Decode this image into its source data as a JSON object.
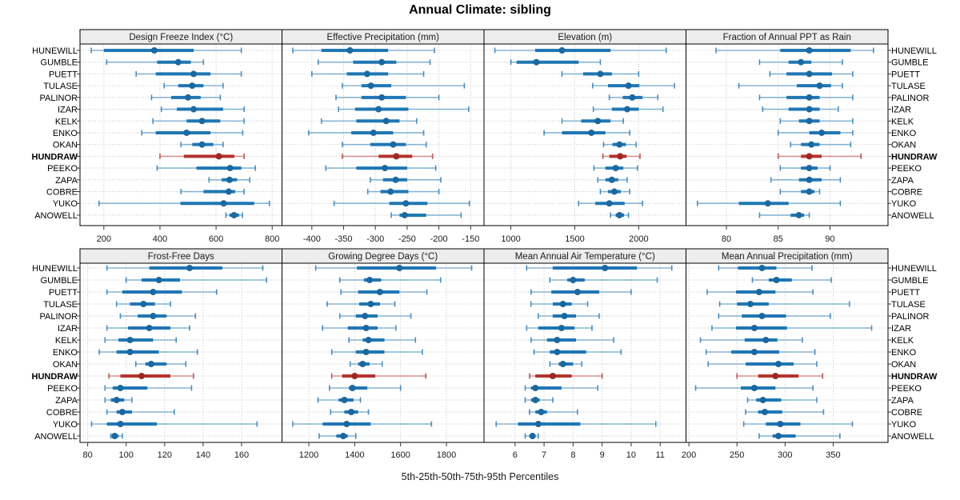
{
  "title": "Annual Climate: sibling",
  "caption": "5th-25th-50th-75th-95th Percentiles",
  "colors": {
    "normal": "#1f77b4",
    "normal_dot": "#1a699f",
    "highlight": "#b4332e",
    "highlight_dot": "#9e2823",
    "grid": "#c9c9c9",
    "strip_bg": "#ededed",
    "border": "#000000",
    "tick": "#333333",
    "text": "#1a1a1a"
  },
  "chart_data": {
    "type": "interval-dotplot",
    "layout": {
      "rows": 2,
      "cols": 4,
      "grid": true,
      "legend": "none"
    },
    "percentile_labels": [
      "5th",
      "25th",
      "50th",
      "75th",
      "95th"
    ],
    "stations": [
      "HUNEWILL",
      "GUMBLE",
      "PUETT",
      "TULASE",
      "PALINOR",
      "IZAR",
      "KELK",
      "ENKO",
      "OKAN",
      "HUNDRAW",
      "PEEKO",
      "ZAPA",
      "COBRE",
      "YUKO",
      "ANOWELL"
    ],
    "highlight": "HUNDRAW",
    "panels": [
      {
        "title": "Design Freeze Index (°C)",
        "xlim": [
          115,
          835
        ],
        "ticks": [
          200,
          400,
          600,
          800
        ],
        "values": [
          [
            155,
            200,
            380,
            520,
            690
          ],
          [
            210,
            390,
            465,
            510,
            555
          ],
          [
            315,
            385,
            520,
            580,
            690
          ],
          [
            415,
            465,
            515,
            555,
            625
          ],
          [
            370,
            440,
            500,
            545,
            615
          ],
          [
            405,
            460,
            520,
            625,
            700
          ],
          [
            375,
            495,
            550,
            615,
            700
          ],
          [
            335,
            385,
            495,
            580,
            695
          ],
          [
            475,
            515,
            550,
            590,
            625
          ],
          [
            400,
            485,
            610,
            665,
            700
          ],
          [
            390,
            530,
            650,
            690,
            740
          ],
          [
            575,
            620,
            648,
            675,
            720
          ],
          [
            475,
            555,
            645,
            668,
            700
          ],
          [
            183,
            473,
            627,
            736,
            790
          ],
          [
            635,
            648,
            664,
            682,
            694
          ]
        ]
      },
      {
        "title": "Effective Precipitation (mm)",
        "xlim": [
          -447,
          -129
        ],
        "ticks": [
          -400,
          -350,
          -300,
          -250,
          -200,
          -150
        ],
        "values": [
          [
            -430,
            -385,
            -340,
            -280,
            -207
          ],
          [
            -390,
            -335,
            -290,
            -267,
            -214
          ],
          [
            -400,
            -345,
            -313,
            -280,
            -224
          ],
          [
            -352,
            -322,
            -307,
            -275,
            -160
          ],
          [
            -362,
            -322,
            -290,
            -252,
            -200
          ],
          [
            -358,
            -332,
            -295,
            -248,
            -153
          ],
          [
            -385,
            -330,
            -283,
            -262,
            -235
          ],
          [
            -405,
            -338,
            -303,
            -272,
            -224
          ],
          [
            -352,
            -308,
            -272,
            -252,
            -220
          ],
          [
            -352,
            -295,
            -267,
            -242,
            -210
          ],
          [
            -378,
            -330,
            -285,
            -250,
            -205
          ],
          [
            -308,
            -288,
            -268,
            -250,
            -197
          ],
          [
            -312,
            -292,
            -276,
            -248,
            -200
          ],
          [
            -365,
            -278,
            -252,
            -218,
            -152
          ],
          [
            -275,
            -262,
            -254,
            -220,
            -165
          ]
        ]
      },
      {
        "title": "Elevation (m)",
        "xlim": [
          790,
          2370
        ],
        "ticks": [
          1000,
          1500,
          2000
        ],
        "values": [
          [
            875,
            1190,
            1400,
            1780,
            2215
          ],
          [
            1000,
            1045,
            1200,
            1530,
            1700
          ],
          [
            1400,
            1565,
            1700,
            1790,
            2000
          ],
          [
            1640,
            1760,
            1920,
            2005,
            2280
          ],
          [
            1770,
            1875,
            1950,
            2030,
            2150
          ],
          [
            1645,
            1790,
            1910,
            2000,
            2190
          ],
          [
            1400,
            1550,
            1680,
            1780,
            1880
          ],
          [
            1260,
            1400,
            1630,
            1740,
            1930
          ],
          [
            1725,
            1795,
            1850,
            1900,
            1980
          ],
          [
            1720,
            1770,
            1855,
            1905,
            2010
          ],
          [
            1650,
            1740,
            1820,
            1880,
            1990
          ],
          [
            1680,
            1740,
            1790,
            1840,
            1910
          ],
          [
            1700,
            1760,
            1810,
            1860,
            1930
          ],
          [
            1530,
            1660,
            1770,
            1890,
            2030
          ],
          [
            1780,
            1820,
            1850,
            1885,
            1920
          ]
        ]
      },
      {
        "title": "Fraction of Annual PPT as Rain",
        "xlim": [
          76.1,
          95.6
        ],
        "ticks": [
          80,
          85,
          90
        ],
        "values": [
          [
            79,
            85.2,
            88,
            92,
            94.2
          ],
          [
            83.2,
            86,
            87.2,
            88.2,
            91.2
          ],
          [
            84.2,
            85.8,
            88,
            90.2,
            92.2
          ],
          [
            81.2,
            86.8,
            89,
            90.1,
            91.2
          ],
          [
            83.2,
            85.8,
            88,
            89,
            92.2
          ],
          [
            83.5,
            86,
            88,
            89,
            90.8
          ],
          [
            85.2,
            87,
            88,
            89,
            92.2
          ],
          [
            85,
            88,
            89.2,
            91,
            92.2
          ],
          [
            86.2,
            87.2,
            88.2,
            89,
            92
          ],
          [
            85,
            87.2,
            88,
            89.2,
            93
          ],
          [
            85.2,
            87.2,
            88,
            88.8,
            90
          ],
          [
            84.3,
            87,
            88,
            89.2,
            91
          ],
          [
            85.2,
            87.2,
            88,
            88.5,
            89
          ],
          [
            77.2,
            81.2,
            84,
            86,
            91
          ],
          [
            83.2,
            86.2,
            87,
            87.5,
            88
          ]
        ]
      },
      {
        "title": "Frost-Free Days",
        "xlim": [
          76,
          181
        ],
        "ticks": [
          80,
          100,
          120,
          140,
          160
        ],
        "values": [
          [
            90,
            112,
            133,
            150,
            171
          ],
          [
            100,
            108,
            117,
            128,
            173
          ],
          [
            90,
            98,
            114,
            129,
            147
          ],
          [
            95,
            102,
            109,
            115,
            123
          ],
          [
            97,
            106,
            114,
            121,
            136
          ],
          [
            90,
            101,
            112,
            123,
            133
          ],
          [
            89,
            96,
            102,
            114,
            126
          ],
          [
            86,
            95,
            102,
            117,
            137
          ],
          [
            105,
            110,
            113,
            121,
            131
          ],
          [
            91,
            97,
            108,
            123,
            135
          ],
          [
            89,
            93,
            97,
            111,
            134
          ],
          [
            89,
            92,
            95,
            99,
            103
          ],
          [
            90,
            95,
            98,
            103,
            125
          ],
          [
            82,
            90,
            97,
            116,
            168
          ],
          [
            92,
            93,
            94,
            96,
            98
          ]
        ]
      },
      {
        "title": "Growing Degree Days (°C)",
        "xlim": [
          1083,
          1964
        ],
        "ticks": [
          1200,
          1400,
          1600,
          1800
        ],
        "values": [
          [
            1230,
            1410,
            1595,
            1755,
            1910
          ],
          [
            1335,
            1440,
            1465,
            1515,
            1775
          ],
          [
            1340,
            1415,
            1510,
            1595,
            1715
          ],
          [
            1280,
            1420,
            1470,
            1510,
            1575
          ],
          [
            1335,
            1405,
            1445,
            1500,
            1645
          ],
          [
            1260,
            1370,
            1450,
            1500,
            1580
          ],
          [
            1375,
            1435,
            1460,
            1530,
            1665
          ],
          [
            1300,
            1405,
            1450,
            1530,
            1695
          ],
          [
            1380,
            1415,
            1435,
            1465,
            1520
          ],
          [
            1300,
            1345,
            1400,
            1490,
            1710
          ],
          [
            1290,
            1375,
            1390,
            1455,
            1600
          ],
          [
            1240,
            1330,
            1355,
            1395,
            1425
          ],
          [
            1295,
            1355,
            1385,
            1415,
            1460
          ],
          [
            1130,
            1260,
            1365,
            1470,
            1735
          ],
          [
            1245,
            1320,
            1350,
            1370,
            1405
          ]
        ]
      },
      {
        "title": "Mean Annual Air Temperature (°C)",
        "xlim": [
          4.93,
          11.89
        ],
        "ticks": [
          6,
          7,
          8,
          9,
          10,
          11
        ],
        "values": [
          [
            6.4,
            7.3,
            9.1,
            10.2,
            11.4
          ],
          [
            7.2,
            7.8,
            8.0,
            8.4,
            10.9
          ],
          [
            6.55,
            7.25,
            8.15,
            8.9,
            10.0
          ],
          [
            6.55,
            7.3,
            7.65,
            7.95,
            8.5
          ],
          [
            6.8,
            7.3,
            7.7,
            8.1,
            8.9
          ],
          [
            6.4,
            6.8,
            7.6,
            8.05,
            8.65
          ],
          [
            6.55,
            7.1,
            7.45,
            8.1,
            9.4
          ],
          [
            6.65,
            7.2,
            7.45,
            8.45,
            9.65
          ],
          [
            7.2,
            7.5,
            7.65,
            8.0,
            8.3
          ],
          [
            6.5,
            6.7,
            7.3,
            7.95,
            9.0
          ],
          [
            6.35,
            6.55,
            6.7,
            7.6,
            8.85
          ],
          [
            6.35,
            6.55,
            6.7,
            6.85,
            7.3
          ],
          [
            6.5,
            6.7,
            6.9,
            7.1,
            8.15
          ],
          [
            5.35,
            6.1,
            6.8,
            8.25,
            10.85
          ],
          [
            6.35,
            6.5,
            6.6,
            6.7,
            6.8
          ]
        ]
      },
      {
        "title": "Mean Annual Precipitation (mm)",
        "xlim": [
          197,
          407
        ],
        "ticks": [
          200,
          250,
          300,
          350
        ],
        "values": [
          [
            231,
            251,
            276,
            291,
            328
          ],
          [
            266,
            283,
            291,
            307,
            348
          ],
          [
            219,
            249,
            273,
            290,
            329
          ],
          [
            232,
            250,
            264,
            283,
            367
          ],
          [
            231,
            255,
            276,
            301,
            347
          ],
          [
            224,
            249,
            268,
            302,
            390
          ],
          [
            212,
            258,
            280,
            292,
            318
          ],
          [
            218,
            244,
            268,
            294,
            331
          ],
          [
            220,
            259,
            293,
            309,
            333
          ],
          [
            250,
            272,
            290,
            314,
            339
          ],
          [
            207,
            254,
            268,
            290,
            329
          ],
          [
            261,
            270,
            277,
            296,
            333
          ],
          [
            259,
            272,
            279,
            297,
            340
          ],
          [
            257,
            280,
            295,
            316,
            370
          ],
          [
            273,
            287,
            293,
            311,
            357
          ]
        ]
      }
    ]
  }
}
